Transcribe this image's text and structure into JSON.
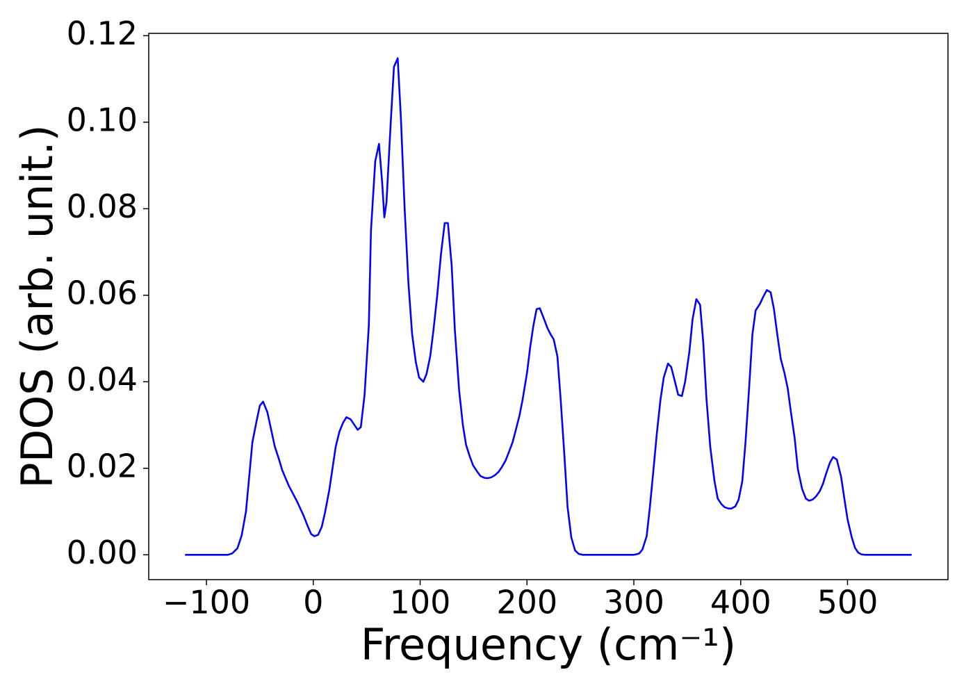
{
  "chart_data": {
    "type": "line",
    "xlabel": "Frequency (cm⁻¹)",
    "ylabel": "PDOS (arb. unit.)",
    "color": "#0000ff",
    "x": [
      -120,
      -100,
      -80,
      -76,
      -71,
      -67,
      -63,
      -60,
      -57,
      -53,
      -50,
      -47,
      -43,
      -39.5,
      -36,
      -32,
      -29,
      -23,
      -15.5,
      -9,
      -5,
      -2,
      1,
      4.5,
      8,
      11,
      15,
      18,
      21,
      24.5,
      28,
      31,
      35,
      38,
      41.5,
      44.5,
      48,
      52,
      54,
      58,
      61.5,
      64.5,
      66.5,
      68.5,
      72.5,
      75.5,
      79,
      82,
      85.5,
      89,
      92.5,
      96,
      99,
      103,
      106,
      109.5,
      112.5,
      116,
      119.5,
      123,
      126,
      129.5,
      132.5,
      136.5,
      140,
      143,
      146.5,
      149.5,
      153.5,
      156.5,
      160,
      163,
      166.5,
      170,
      173.5,
      176.5,
      180,
      183,
      186.5,
      189.5,
      193,
      196,
      200,
      203,
      206,
      209,
      212,
      215.5,
      219,
      222,
      225,
      228.5,
      231.5,
      235,
      238,
      241.5,
      245,
      248.5,
      252,
      300,
      302,
      305,
      308,
      312,
      315,
      318.5,
      321.5,
      325,
      328,
      332,
      335,
      338.5,
      341.5,
      345,
      348,
      352,
      355,
      358.5,
      362,
      365,
      368,
      371.5,
      375.5,
      378.5,
      382,
      385,
      388.5,
      391.5,
      395,
      398,
      401.5,
      404.5,
      408,
      411,
      414,
      418,
      421,
      424.5,
      428,
      431,
      434.5,
      437.5,
      441,
      444,
      447,
      450.5,
      453.5,
      457.5,
      461,
      464,
      467.5,
      470.5,
      474,
      477,
      480,
      483.5,
      486.5,
      490,
      494,
      497,
      500,
      504,
      507,
      510,
      513,
      516.5,
      560
    ],
    "values": [
      0,
      0,
      0,
      0.0003,
      0.0015,
      0.0045,
      0.01,
      0.018,
      0.026,
      0.031,
      0.0345,
      0.0354,
      0.033,
      0.029,
      0.025,
      0.022,
      0.0195,
      0.016,
      0.0125,
      0.009,
      0.0065,
      0.0048,
      0.0043,
      0.0046,
      0.0065,
      0.0098,
      0.015,
      0.02,
      0.025,
      0.0285,
      0.0306,
      0.0318,
      0.0313,
      0.0302,
      0.0289,
      0.0295,
      0.037,
      0.053,
      0.075,
      0.091,
      0.095,
      0.086,
      0.078,
      0.0815,
      0.1,
      0.1128,
      0.1148,
      0.101,
      0.08,
      0.063,
      0.051,
      0.0445,
      0.041,
      0.04,
      0.0418,
      0.046,
      0.052,
      0.06,
      0.0695,
      0.0767,
      0.0767,
      0.067,
      0.052,
      0.038,
      0.03,
      0.0254,
      0.0227,
      0.0207,
      0.0192,
      0.0182,
      0.0178,
      0.0177,
      0.0179,
      0.0184,
      0.0192,
      0.0203,
      0.0218,
      0.0237,
      0.026,
      0.0288,
      0.0322,
      0.036,
      0.042,
      0.048,
      0.053,
      0.0568,
      0.057,
      0.0548,
      0.0525,
      0.051,
      0.0498,
      0.0458,
      0.036,
      0.023,
      0.011,
      0.004,
      0.001,
      0.0002,
      0,
      0,
      0.0001,
      0.0003,
      0.0012,
      0.0043,
      0.011,
      0.02,
      0.028,
      0.036,
      0.041,
      0.0442,
      0.0434,
      0.04,
      0.037,
      0.0367,
      0.04,
      0.047,
      0.0545,
      0.0591,
      0.0578,
      0.049,
      0.036,
      0.025,
      0.017,
      0.013,
      0.0117,
      0.011,
      0.0107,
      0.0107,
      0.0112,
      0.0127,
      0.017,
      0.026,
      0.039,
      0.051,
      0.0565,
      0.058,
      0.0596,
      0.0612,
      0.0607,
      0.057,
      0.0505,
      0.0453,
      0.042,
      0.0385,
      0.033,
      0.027,
      0.0198,
      0.0152,
      0.013,
      0.0125,
      0.0128,
      0.0135,
      0.0147,
      0.0164,
      0.0188,
      0.0213,
      0.0226,
      0.022,
      0.018,
      0.013,
      0.0082,
      0.004,
      0.0016,
      0.0005,
      0.0001,
      0,
      0
    ],
    "xlim": [
      -154,
      594
    ],
    "ylim": [
      -0.00574,
      0.12054
    ],
    "xticks": [
      {
        "value": -100,
        "label": "−100"
      },
      0,
      100,
      200,
      300,
      400,
      500
    ],
    "yticks": [
      {
        "value": 0,
        "label": "0.00"
      },
      {
        "value": 0.02,
        "label": "0.02"
      },
      {
        "value": 0.04,
        "label": "0.04"
      },
      {
        "value": 0.06,
        "label": "0.06"
      },
      {
        "value": 0.08,
        "label": "0.08"
      },
      {
        "value": 0.1,
        "label": "0.10"
      },
      {
        "value": 0.12,
        "label": "0.12"
      }
    ],
    "grid": false
  }
}
